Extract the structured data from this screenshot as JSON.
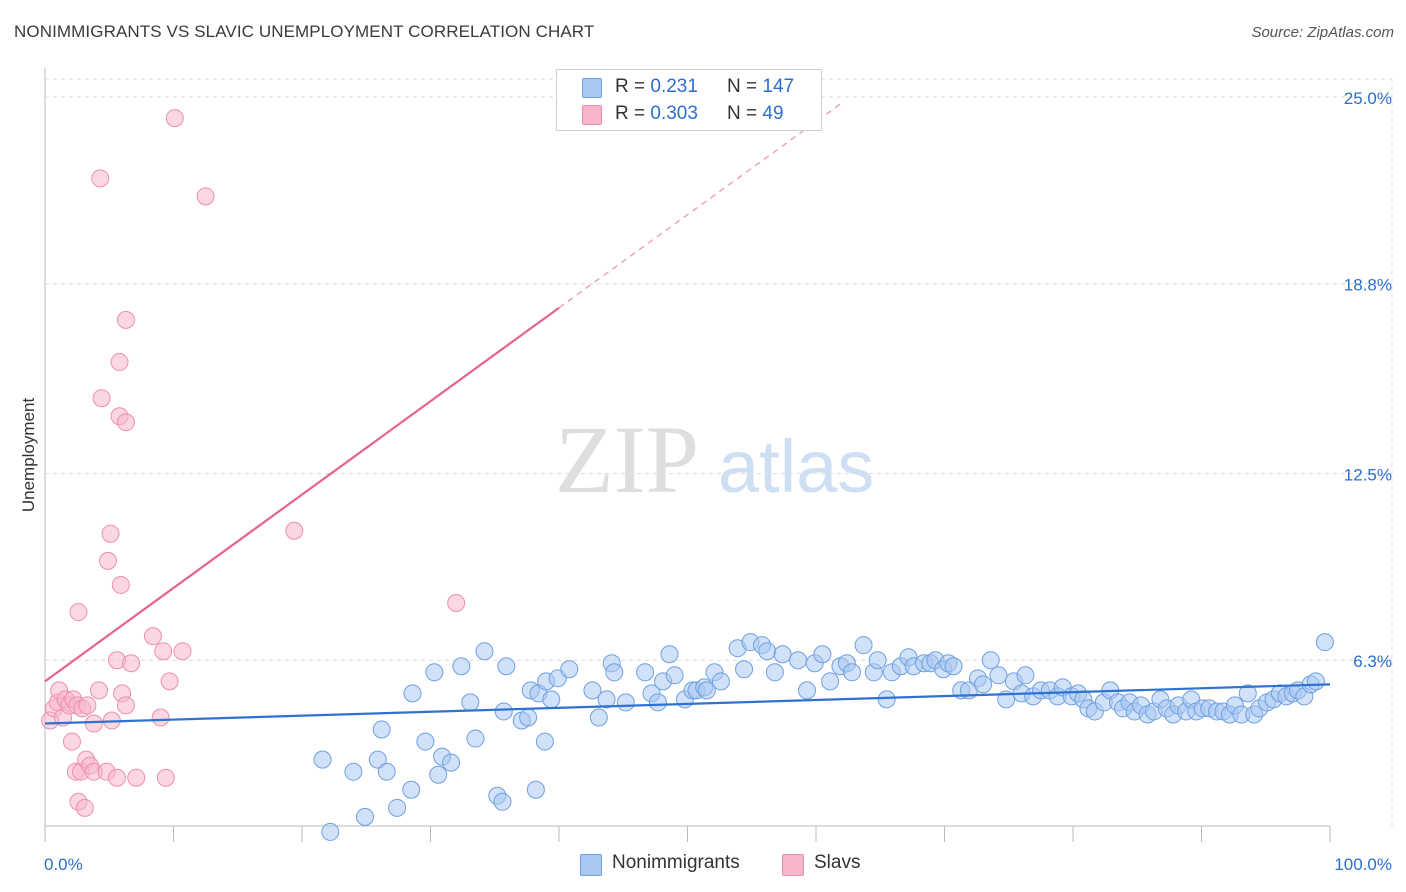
{
  "title": "NONIMMIGRANTS VS SLAVIC UNEMPLOYMENT CORRELATION CHART",
  "source": "Source: ZipAtlas.com",
  "watermark": {
    "zip": "ZIP",
    "atlas": "atlas"
  },
  "colors": {
    "blue_fill": "#a9c8f2",
    "blue_stroke": "#6fa0e0",
    "blue_line": "#2f72d0",
    "pink_fill": "#f7b6cb",
    "pink_stroke": "#ec8fae",
    "pink_line": "#e5638e",
    "tick_label": "#2c6fcd",
    "grid": "#dcdcdc"
  },
  "legend": {
    "rows": [
      {
        "r_label": "R = ",
        "r_value": "0.231",
        "n_label": "N = ",
        "n_value": "147"
      },
      {
        "r_label": "R = ",
        "r_value": "0.303",
        "n_label": "N = ",
        "n_value": "49"
      }
    ]
  },
  "bottom_legend": {
    "series1": "Nonimmigrants",
    "series2": "Slavs"
  },
  "chart_data": {
    "type": "scatter",
    "xlabel": "",
    "ylabel": "Unemployment",
    "xlim": [
      0,
      100
    ],
    "ylim": [
      0,
      25.5
    ],
    "x_tick_labels": [
      "0.0%",
      "100.0%"
    ],
    "y_ticks": [
      6.3,
      12.5,
      18.8,
      25.0
    ],
    "y_tick_labels": [
      "6.3%",
      "12.5%",
      "18.8%",
      "25.0%"
    ],
    "grid": true,
    "series": [
      {
        "name": "Nonimmigrants",
        "trend": {
          "x": [
            0,
            100
          ],
          "y": [
            4.2,
            5.5
          ]
        },
        "points": [
          [
            21.6,
            3.0
          ],
          [
            22.2,
            0.6
          ],
          [
            24.0,
            2.6
          ],
          [
            24.9,
            1.1
          ],
          [
            25.9,
            3.0
          ],
          [
            26.2,
            4.0
          ],
          [
            26.6,
            2.6
          ],
          [
            27.4,
            1.4
          ],
          [
            28.5,
            2.0
          ],
          [
            28.6,
            5.2
          ],
          [
            29.6,
            3.6
          ],
          [
            30.3,
            5.9
          ],
          [
            30.6,
            2.5
          ],
          [
            30.9,
            3.1
          ],
          [
            31.6,
            2.9
          ],
          [
            33.1,
            4.9
          ],
          [
            33.5,
            3.7
          ],
          [
            35.2,
            1.8
          ],
          [
            35.6,
            1.6
          ],
          [
            35.7,
            4.6
          ],
          [
            35.9,
            6.1
          ],
          [
            37.1,
            4.3
          ],
          [
            37.6,
            4.4
          ],
          [
            37.8,
            5.3
          ],
          [
            38.2,
            2.0
          ],
          [
            38.4,
            5.2
          ],
          [
            38.9,
            3.6
          ],
          [
            39.0,
            5.6
          ],
          [
            39.4,
            5.0
          ],
          [
            39.9,
            5.7
          ],
          [
            40.8,
            6.0
          ],
          [
            42.6,
            5.3
          ],
          [
            43.1,
            4.4
          ],
          [
            43.7,
            5.0
          ],
          [
            44.1,
            6.2
          ],
          [
            44.3,
            5.9
          ],
          [
            45.2,
            4.9
          ],
          [
            46.7,
            5.9
          ],
          [
            47.2,
            5.2
          ],
          [
            47.7,
            4.9
          ],
          [
            48.1,
            5.6
          ],
          [
            48.6,
            6.5
          ],
          [
            49.0,
            5.8
          ],
          [
            49.8,
            5.0
          ],
          [
            50.4,
            5.3
          ],
          [
            50.7,
            5.3
          ],
          [
            51.3,
            5.4
          ],
          [
            51.5,
            5.3
          ],
          [
            52.1,
            5.9
          ],
          [
            52.6,
            5.6
          ],
          [
            53.9,
            6.7
          ],
          [
            54.4,
            6.0
          ],
          [
            54.9,
            6.9
          ],
          [
            55.8,
            6.8
          ],
          [
            56.2,
            6.6
          ],
          [
            56.8,
            5.9
          ],
          [
            57.4,
            6.5
          ],
          [
            58.6,
            6.3
          ],
          [
            59.3,
            5.3
          ],
          [
            59.9,
            6.2
          ],
          [
            60.5,
            6.5
          ],
          [
            61.1,
            5.6
          ],
          [
            61.9,
            6.1
          ],
          [
            62.4,
            6.2
          ],
          [
            62.8,
            5.9
          ],
          [
            63.7,
            6.8
          ],
          [
            64.5,
            5.9
          ],
          [
            64.8,
            6.3
          ],
          [
            65.5,
            5.0
          ],
          [
            65.9,
            5.9
          ],
          [
            66.6,
            6.1
          ],
          [
            67.2,
            6.4
          ],
          [
            67.6,
            6.1
          ],
          [
            68.4,
            6.2
          ],
          [
            68.9,
            6.2
          ],
          [
            69.3,
            6.3
          ],
          [
            69.9,
            6.0
          ],
          [
            70.3,
            6.2
          ],
          [
            70.7,
            6.1
          ],
          [
            71.3,
            5.3
          ],
          [
            71.9,
            5.3
          ],
          [
            72.6,
            5.7
          ],
          [
            73.0,
            5.5
          ],
          [
            73.6,
            6.3
          ],
          [
            74.2,
            5.8
          ],
          [
            74.8,
            5.0
          ],
          [
            75.4,
            5.6
          ],
          [
            76.0,
            5.2
          ],
          [
            76.3,
            5.8
          ],
          [
            76.9,
            5.1
          ],
          [
            77.5,
            5.3
          ],
          [
            78.2,
            5.3
          ],
          [
            78.8,
            5.1
          ],
          [
            79.2,
            5.4
          ],
          [
            79.9,
            5.1
          ],
          [
            80.4,
            5.2
          ],
          [
            80.8,
            5.0
          ],
          [
            81.2,
            4.7
          ],
          [
            81.7,
            4.6
          ],
          [
            82.4,
            4.9
          ],
          [
            82.9,
            5.3
          ],
          [
            83.5,
            4.9
          ],
          [
            83.9,
            4.7
          ],
          [
            84.4,
            4.9
          ],
          [
            84.8,
            4.6
          ],
          [
            85.3,
            4.8
          ],
          [
            85.8,
            4.5
          ],
          [
            86.3,
            4.6
          ],
          [
            86.8,
            5.0
          ],
          [
            87.3,
            4.7
          ],
          [
            87.8,
            4.5
          ],
          [
            88.2,
            4.8
          ],
          [
            88.8,
            4.6
          ],
          [
            89.2,
            5.0
          ],
          [
            89.6,
            4.6
          ],
          [
            90.1,
            4.7
          ],
          [
            90.6,
            4.7
          ],
          [
            91.2,
            4.6
          ],
          [
            91.7,
            4.6
          ],
          [
            92.2,
            4.5
          ],
          [
            92.6,
            4.8
          ],
          [
            93.1,
            4.5
          ],
          [
            93.6,
            5.2
          ],
          [
            94.1,
            4.5
          ],
          [
            94.5,
            4.7
          ],
          [
            95.1,
            4.9
          ],
          [
            95.6,
            5.0
          ],
          [
            96.1,
            5.2
          ],
          [
            96.6,
            5.1
          ],
          [
            97.1,
            5.2
          ],
          [
            97.5,
            5.3
          ],
          [
            98.0,
            5.1
          ],
          [
            98.5,
            5.5
          ],
          [
            98.9,
            5.6
          ],
          [
            99.6,
            6.9
          ],
          [
            32.4,
            6.1
          ],
          [
            34.2,
            6.6
          ]
        ]
      },
      {
        "name": "Slavs",
        "trend": {
          "x": [
            0,
            40
          ],
          "y": [
            5.6,
            18.0
          ],
          "dash_to": {
            "x": 62.0,
            "y": 24.8
          }
        },
        "points": [
          [
            0.4,
            4.3
          ],
          [
            0.7,
            4.7
          ],
          [
            1.0,
            4.9
          ],
          [
            1.1,
            5.3
          ],
          [
            1.4,
            4.4
          ],
          [
            1.6,
            5.0
          ],
          [
            1.9,
            4.8
          ],
          [
            2.1,
            3.6
          ],
          [
            2.2,
            5.0
          ],
          [
            2.4,
            2.6
          ],
          [
            2.5,
            4.8
          ],
          [
            2.8,
            2.6
          ],
          [
            2.9,
            4.7
          ],
          [
            2.6,
            7.9
          ],
          [
            2.6,
            1.6
          ],
          [
            3.2,
            3.0
          ],
          [
            3.1,
            1.4
          ],
          [
            3.3,
            4.8
          ],
          [
            3.5,
            2.8
          ],
          [
            3.8,
            2.6
          ],
          [
            3.8,
            4.2
          ],
          [
            4.2,
            5.3
          ],
          [
            4.4,
            15.0
          ],
          [
            4.3,
            22.3
          ],
          [
            4.8,
            2.6
          ],
          [
            4.9,
            9.6
          ],
          [
            5.1,
            10.5
          ],
          [
            5.6,
            2.4
          ],
          [
            5.2,
            4.3
          ],
          [
            5.6,
            6.3
          ],
          [
            5.8,
            16.2
          ],
          [
            5.8,
            14.4
          ],
          [
            5.9,
            8.8
          ],
          [
            6.0,
            5.2
          ],
          [
            6.3,
            14.2
          ],
          [
            6.3,
            17.6
          ],
          [
            6.3,
            4.8
          ],
          [
            6.7,
            6.2
          ],
          [
            7.1,
            2.4
          ],
          [
            8.4,
            7.1
          ],
          [
            9.0,
            4.4
          ],
          [
            9.4,
            2.4
          ],
          [
            9.7,
            5.6
          ],
          [
            10.1,
            24.3
          ],
          [
            10.7,
            6.6
          ],
          [
            12.5,
            21.7
          ],
          [
            19.4,
            10.6
          ],
          [
            32.0,
            8.2
          ],
          [
            9.2,
            6.6
          ]
        ]
      }
    ]
  }
}
